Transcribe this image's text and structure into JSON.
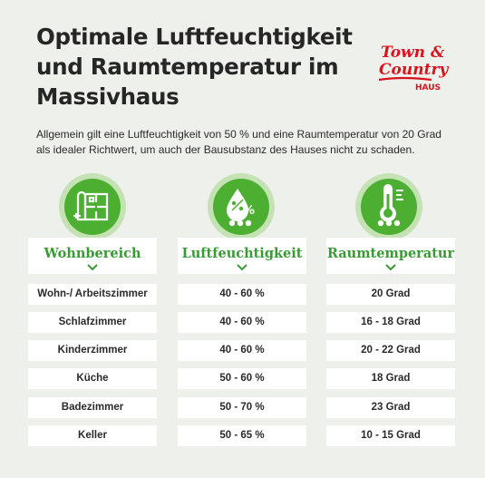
{
  "header": {
    "title_line1": "Optimale Luftfeuchtigkeit",
    "title_line2": "und Raumtemperatur im",
    "title_line3": "Massivhaus",
    "intro_line1": "Allgemein gilt eine Luftfeuchtigkeit von 50 % und eine Raumtemperatur von 20 Grad",
    "intro_line2": "als idealer Richtwert, um auch der Bausubstanz des Hauses nicht zu schaden."
  },
  "logo": {
    "text_line1": "Town &",
    "text_line2": "Country",
    "text_line3": "HAUS"
  },
  "colors": {
    "green": "#3a9a35",
    "icon_green": "#4caf32",
    "logo_red": "#d9141e",
    "background": "#eef0ec"
  },
  "columns": [
    {
      "header": "Wohnbereich",
      "icon": "floorplan-icon"
    },
    {
      "header": "Luftfeuchtigkeit",
      "icon": "humidity-drop-icon"
    },
    {
      "header": "Raumtemperatur",
      "icon": "thermometer-icon"
    }
  ],
  "rows": [
    {
      "room": "Wohn-/ Arbeitszimmer",
      "humidity": "40 - 60 %",
      "temperature": "20 Grad"
    },
    {
      "room": "Schlafzimmer",
      "humidity": "40 - 60 %",
      "temperature": "16 - 18 Grad"
    },
    {
      "room": "Kinderzimmer",
      "humidity": "40 - 60 %",
      "temperature": "20 - 22 Grad"
    },
    {
      "room": "Küche",
      "humidity": "50 - 60 %",
      "temperature": "18 Grad"
    },
    {
      "room": "Badezimmer",
      "humidity": "50 - 70 %",
      "temperature": "23 Grad"
    },
    {
      "room": "Keller",
      "humidity": "50 - 65 %",
      "temperature": "10 - 15 Grad"
    }
  ]
}
